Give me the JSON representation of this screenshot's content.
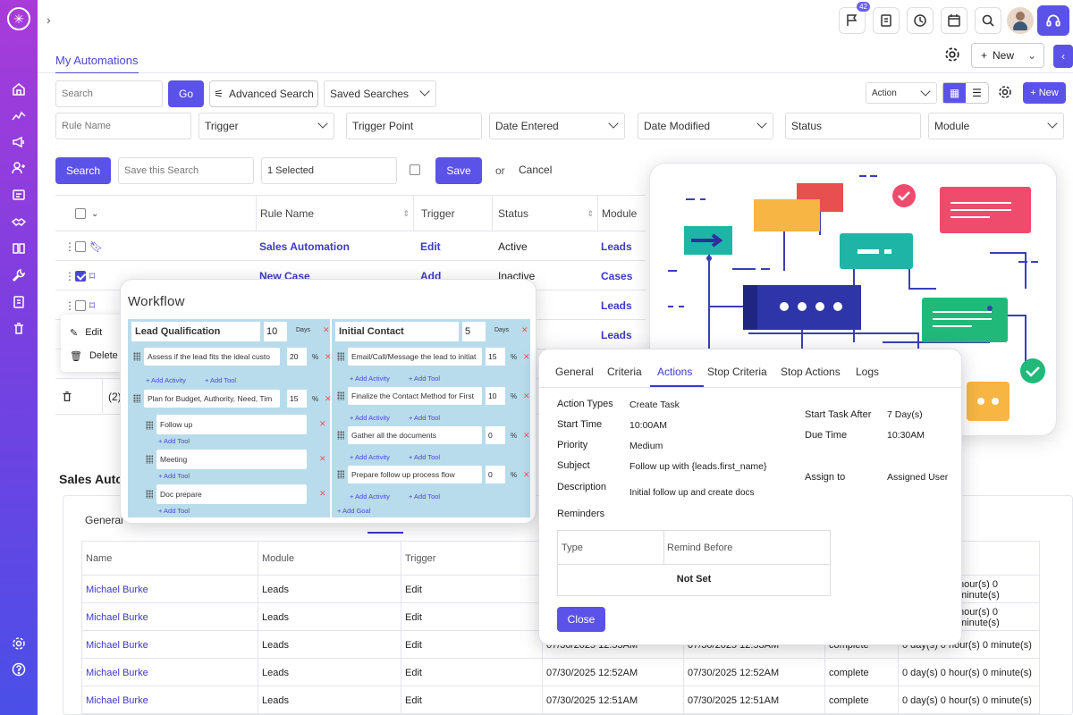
{
  "topbar": {
    "notification_count": "42"
  },
  "tabs": {
    "active": "My Automations",
    "new_label": "New"
  },
  "search_bar": {
    "search_placeholder": "Search",
    "go_label": "Go",
    "advanced_label": "Advanced Search",
    "saved_label": "Saved Searches",
    "action_label": "Action",
    "new_label": "+ New"
  },
  "filters": {
    "rule_name_placeholder": "Rule Name",
    "trigger": "Trigger",
    "trigger_point": "Trigger Point",
    "date_entered": "Date Entered",
    "date_modified": "Date Modified",
    "status": "Status",
    "module": "Module"
  },
  "search_actions": {
    "search_label": "Search",
    "save_placeholder": "Save this Search",
    "selected": "1 Selected",
    "save_label": "Save",
    "or": "or",
    "cancel_label": "Cancel"
  },
  "main_table": {
    "headers": [
      "Rule Name",
      "Trigger",
      "Status",
      "Module"
    ],
    "rows": [
      {
        "name": "Sales Automation",
        "trigger": "Edit",
        "status": "Active",
        "module": "Leads"
      },
      {
        "name": "New Case",
        "trigger": "Add",
        "status": "Inactive",
        "module": "Cases"
      },
      {
        "name": "",
        "trigger": "",
        "status": "",
        "module": "Leads"
      },
      {
        "name": "",
        "trigger": "",
        "status": "",
        "module": "Leads"
      }
    ],
    "footer_count": "(2)"
  },
  "context_menu": {
    "edit": "Edit",
    "delete": "Delete"
  },
  "lower": {
    "title": "Sales Auto",
    "tab": "General",
    "headers": [
      "Name",
      "Module",
      "Trigger"
    ],
    "rows": [
      {
        "name": "Michael Burke",
        "module": "Leads",
        "trigger": "Edit",
        "d1": "",
        "d2": "",
        "status": "",
        "duration": "hour(s) 0 minute(s)"
      },
      {
        "name": "Michael Burke",
        "module": "Leads",
        "trigger": "Edit",
        "d1": "",
        "d2": "",
        "status": "",
        "duration": "hour(s) 0 minute(s)"
      },
      {
        "name": "Michael Burke",
        "module": "Leads",
        "trigger": "Edit",
        "d1": "07/30/2025 12:53AM",
        "d2": "07/30/2025 12:53AM",
        "status": "complete",
        "duration": "0 day(s) 0 hour(s) 0 minute(s)"
      },
      {
        "name": "Michael Burke",
        "module": "Leads",
        "trigger": "Edit",
        "d1": "07/30/2025 12:52AM",
        "d2": "07/30/2025 12:52AM",
        "status": "complete",
        "duration": "0 day(s) 0 hour(s) 0 minute(s)"
      },
      {
        "name": "Michael Burke",
        "module": "Leads",
        "trigger": "Edit",
        "d1": "07/30/2025 12:51AM",
        "d2": "07/30/2025 12:51AM",
        "status": "complete",
        "duration": "0 day(s) 0 hour(s) 0 minute(s)"
      }
    ]
  },
  "workflow": {
    "title": "Workflow",
    "days_label": "Days",
    "add_activity": "+ Add Activity",
    "add_tool": "+ Add Tool",
    "add_goal": "+ Add Goal",
    "stage1": {
      "name": "Lead Qualification",
      "days": "10",
      "tasks": [
        {
          "text": "Assess if the lead fits the ideal custo",
          "pct": "20"
        },
        {
          "text": "Plan for Budget, Authority, Need, Tim",
          "pct": "15"
        }
      ],
      "subtasks": [
        "Follow up",
        "Meeting",
        "Doc prepare"
      ]
    },
    "stage2": {
      "name": "Initial Contact",
      "days": "5",
      "tasks": [
        {
          "text": "Email/Call/Message the lead to initiat",
          "pct": "15"
        },
        {
          "text": "Finalize the Contact Method for First",
          "pct": "10"
        },
        {
          "text": "Gather all the documents",
          "pct": "0"
        },
        {
          "text": "Prepare follow up process flow",
          "pct": "0"
        }
      ]
    }
  },
  "action_card": {
    "tabs": [
      "General",
      "Criteria",
      "Actions",
      "Stop Criteria",
      "Stop Actions",
      "Logs"
    ],
    "active_tab": "Actions",
    "fields": {
      "action_types_label": "Action Types",
      "action_types": "Create Task",
      "start_time_label": "Start Time",
      "start_time": "10:00AM",
      "priority_label": "Priority",
      "priority": "Medium",
      "subject_label": "Subject",
      "subject": "Follow up with {leads.first_name}",
      "description_label": "Description",
      "description": "Initial follow up and create docs",
      "reminders_label": "Reminders",
      "start_after_label": "Start Task After",
      "start_after": "7 Day(s)",
      "due_time_label": "Due Time",
      "due_time": "10:30AM",
      "assign_label": "Assign to",
      "assign": "Assigned User"
    },
    "reminders_table": {
      "headers": [
        "Type",
        "Remind Before"
      ],
      "empty": "Not Set"
    },
    "close_label": "Close"
  },
  "colors": {
    "accent": "#5b52e8",
    "link": "#3d39c8",
    "sidebar_top": "#a83bd9",
    "sidebar_bottom": "#4a4fe8"
  }
}
